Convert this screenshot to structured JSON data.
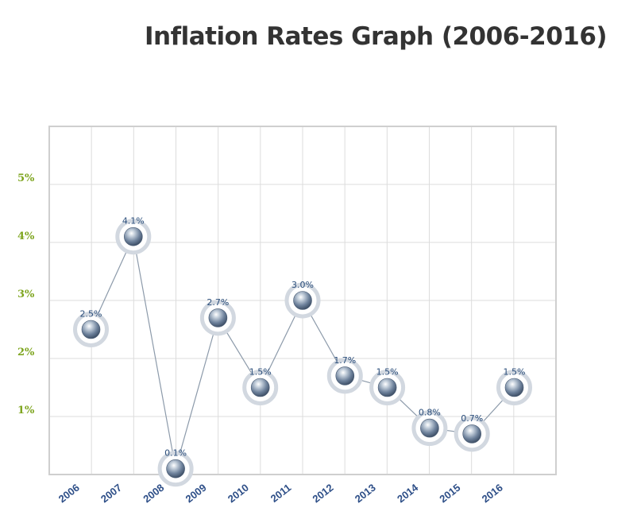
{
  "chart_data": {
    "type": "line",
    "title": "Inflation Rates Graph (2006-2016)",
    "categories": [
      "2006",
      "2007",
      "2008",
      "2009",
      "2010",
      "2011",
      "2012",
      "2013",
      "2014",
      "2015",
      "2016"
    ],
    "values": [
      2.5,
      4.1,
      0.1,
      2.7,
      1.5,
      3.0,
      1.7,
      1.5,
      0.8,
      0.7,
      1.5
    ],
    "data_labels": [
      "2.5%",
      "4.1%",
      "0.1%",
      "2.7%",
      "1.5%",
      "3.0%",
      "1.7%",
      "1.5%",
      "0.8%",
      "0.7%",
      "1.5%"
    ],
    "y_ticks": [
      {
        "value": 1,
        "label": "1%"
      },
      {
        "value": 2,
        "label": "2%"
      },
      {
        "value": 3,
        "label": "3%"
      },
      {
        "value": 4,
        "label": "4%"
      },
      {
        "value": 5,
        "label": "5%"
      }
    ],
    "ylim": [
      0,
      6
    ],
    "xlabel": "",
    "ylabel": "",
    "grid": true,
    "colors": {
      "line": "#8c9aaa",
      "marker": "#5f7591",
      "marker_halo": "#d2d8e0",
      "data_label": "#2c4f7c",
      "y_tick": "#7ea51f",
      "x_tick": "#2e4f88",
      "grid": "#dcdcdc",
      "border": "#cfcfcf"
    }
  }
}
